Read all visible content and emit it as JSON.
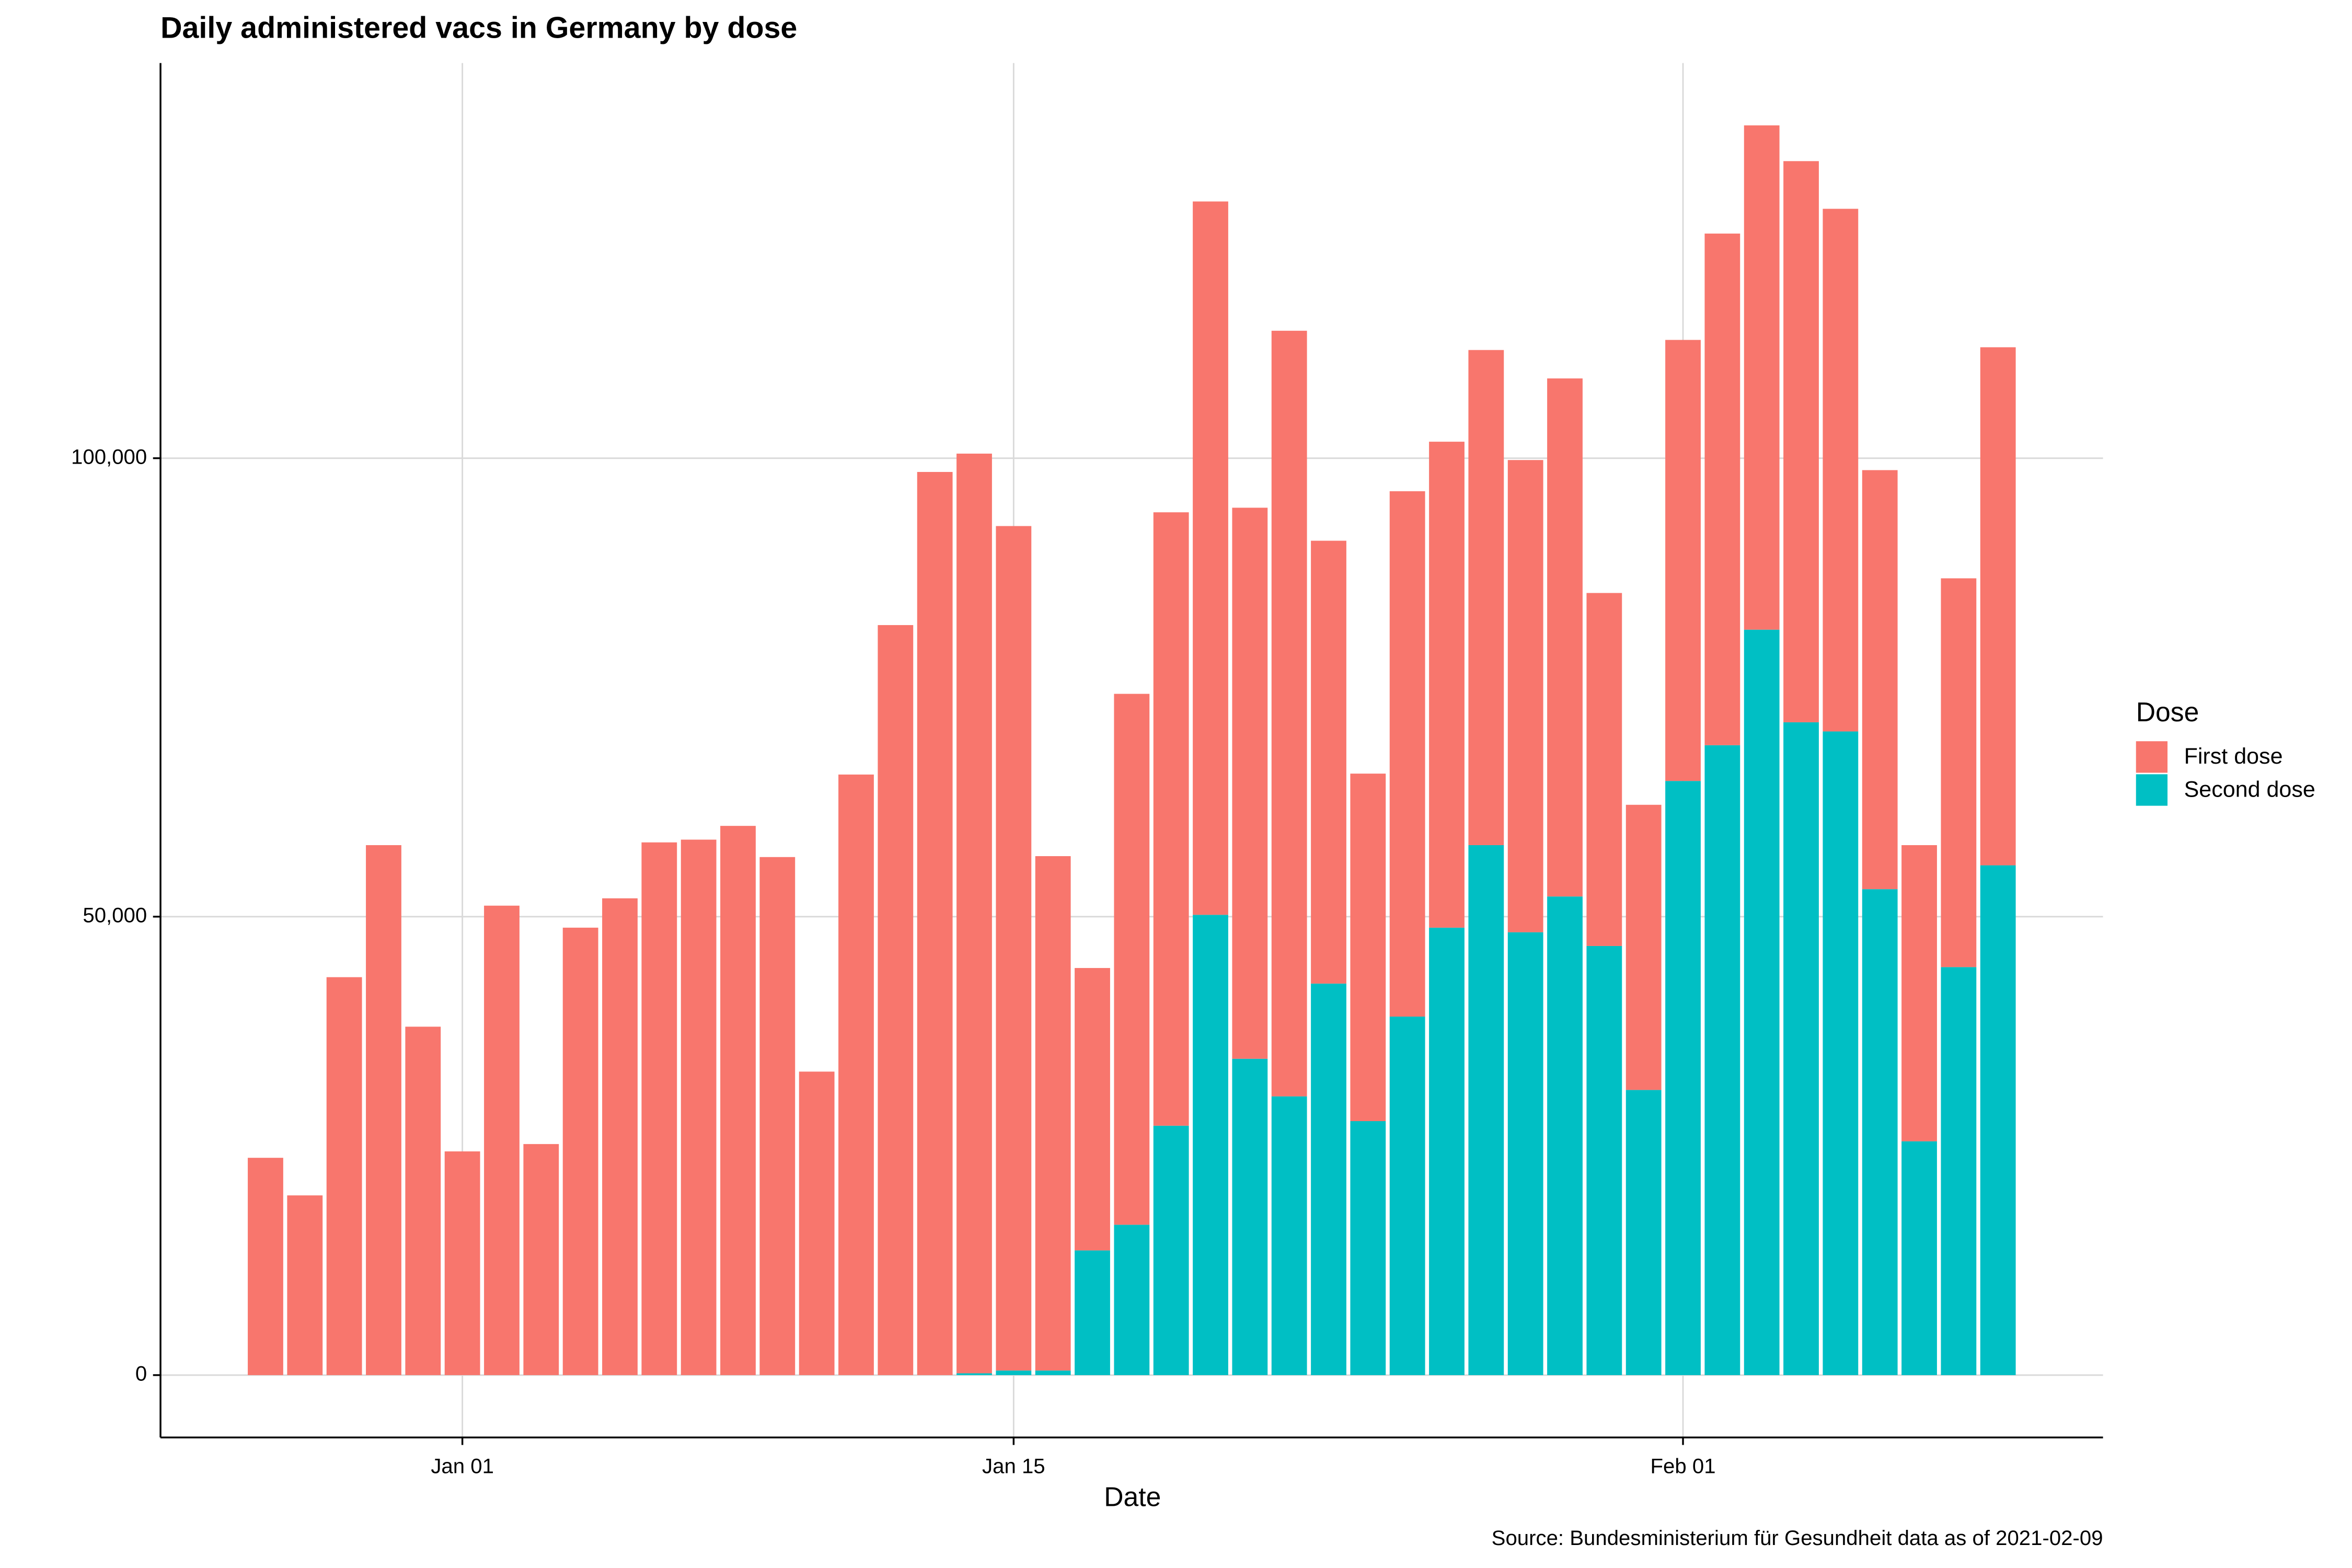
{
  "chart_data": {
    "type": "stacked_bar",
    "title": "Daily administered vacs in Germany by dose",
    "x_label": "Date",
    "caption": "Source: Bundesministerium für Gesundheit data as of 2021-02-09",
    "legend_title": "Dose",
    "legend_position": "right",
    "grid": true,
    "categories": [
      "Dec 27",
      "Dec 28",
      "Dec 29",
      "Dec 30",
      "Dec 31",
      "Jan 01",
      "Jan 02",
      "Jan 03",
      "Jan 04",
      "Jan 05",
      "Jan 06",
      "Jan 07",
      "Jan 08",
      "Jan 09",
      "Jan 10",
      "Jan 11",
      "Jan 12",
      "Jan 13",
      "Jan 14",
      "Jan 15",
      "Jan 16",
      "Jan 17",
      "Jan 18",
      "Jan 19",
      "Jan 20",
      "Jan 21",
      "Jan 22",
      "Jan 23",
      "Jan 24",
      "Jan 25",
      "Jan 26",
      "Jan 27",
      "Jan 28",
      "Jan 29",
      "Jan 30",
      "Jan 31",
      "Feb 01",
      "Feb 02",
      "Feb 03",
      "Feb 04",
      "Feb 05",
      "Feb 06",
      "Feb 07",
      "Feb 08",
      "Feb 09"
    ],
    "xticks": [
      "Jan 01",
      "Jan 15",
      "Feb 01"
    ],
    "series": [
      {
        "name": "First dose",
        "color": "#F8766D",
        "values": [
          23700,
          19600,
          43400,
          57800,
          38000,
          24400,
          51200,
          25200,
          48800,
          52000,
          58100,
          58400,
          59900,
          56500,
          33100,
          65500,
          81800,
          98500,
          100300,
          92100,
          56100,
          30800,
          57900,
          66900,
          77800,
          60100,
          83500,
          48300,
          37900,
          57300,
          53000,
          54000,
          51500,
          56500,
          38500,
          31100,
          48100,
          55800,
          55000,
          61200,
          57000,
          45700,
          32300,
          42400,
          56500
        ]
      },
      {
        "name": "Second dose",
        "color": "#00BFC4",
        "values": [
          0,
          0,
          0,
          0,
          0,
          0,
          0,
          0,
          0,
          0,
          0,
          0,
          0,
          0,
          0,
          0,
          0,
          0,
          200,
          500,
          500,
          13600,
          16400,
          27200,
          50200,
          34500,
          30400,
          42700,
          27700,
          39100,
          48800,
          57800,
          48300,
          52200,
          46800,
          31100,
          64800,
          68700,
          81300,
          71200,
          70200,
          53000,
          25500,
          44500,
          55600
        ]
      }
    ],
    "ylim": [
      -6800,
      143100
    ],
    "yticks": [
      0,
      {
        "value": 50000,
        "label": "50,000"
      },
      {
        "value": 100000,
        "label": "100,000"
      }
    ]
  }
}
